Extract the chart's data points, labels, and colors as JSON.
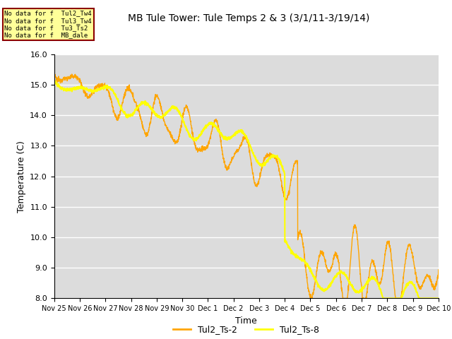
{
  "title": "MB Tule Tower: Tule Temps 2 & 3 (3/1/11-3/19/14)",
  "xlabel": "Time",
  "ylabel": "Temperature (C)",
  "ylim": [
    8.0,
    16.0
  ],
  "yticks": [
    8.0,
    9.0,
    10.0,
    11.0,
    12.0,
    13.0,
    14.0,
    15.0,
    16.0
  ],
  "xtick_labels": [
    "Nov 25",
    "Nov 26",
    "Nov 27",
    "Nov 28",
    "Nov 29",
    "Nov 30",
    "Dec 1",
    "Dec 2",
    "Dec 3",
    "Dec 4",
    "Dec 5",
    "Dec 6",
    "Dec 7",
    "Dec 8",
    "Dec 9",
    "Dec 10"
  ],
  "color_ts2": "#FFA500",
  "color_ts8": "#FFFF00",
  "bg_color": "#DCDCDC",
  "legend_labels": [
    "Tul2_Ts-2",
    "Tul2_Ts-8"
  ],
  "no_data_texts": [
    "No data for f  Tul2_Tw4",
    "No data for f  Tul3_Tw4",
    "No data for f  Tu3_Ts2",
    "No data for f  MB_dale"
  ],
  "no_data_box_color": "#FFFF99",
  "no_data_border_color": "#8B0000"
}
